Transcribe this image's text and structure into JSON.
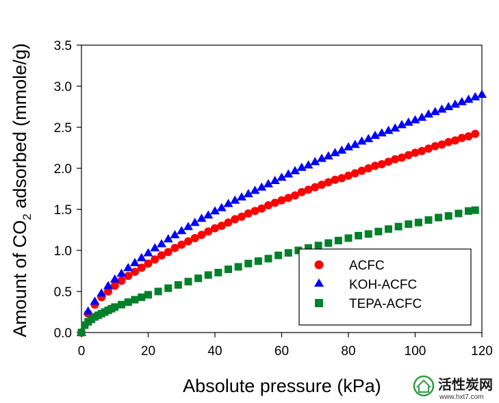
{
  "chart_data": {
    "type": "scatter",
    "xlabel": "Absolute pressure (kPa)",
    "ylabel": {
      "prefix": "Amount of CO",
      "subscript": "2",
      "suffix": " adsorbed (mmole/g)"
    },
    "xlim": [
      0,
      120
    ],
    "ylim": [
      0,
      3.5
    ],
    "xticks": [
      "0",
      "20",
      "40",
      "60",
      "80",
      "100",
      "120"
    ],
    "yticks": [
      "0.0",
      "0.5",
      "1.0",
      "1.5",
      "2.0",
      "2.5",
      "3.0",
      "3.5"
    ],
    "grid": false,
    "legend_position": "bottom-right",
    "series": [
      {
        "name": "ACFC",
        "color": "#ff0000",
        "marker": "circle",
        "x": [
          0,
          2,
          4,
          6,
          8,
          10,
          12,
          14,
          16,
          18,
          20,
          22,
          24,
          26,
          28,
          30,
          32,
          34,
          36,
          38,
          40,
          42,
          44,
          46,
          48,
          50,
          52,
          54,
          56,
          58,
          60,
          62,
          64,
          66,
          68,
          70,
          72,
          74,
          76,
          78,
          80,
          82,
          84,
          86,
          88,
          90,
          92,
          94,
          96,
          98,
          100,
          102,
          104,
          106,
          108,
          110,
          112,
          114,
          116,
          118
        ],
        "y": [
          0.0,
          0.23,
          0.34,
          0.43,
          0.5,
          0.57,
          0.63,
          0.69,
          0.74,
          0.79,
          0.84,
          0.89,
          0.94,
          0.98,
          1.03,
          1.07,
          1.11,
          1.15,
          1.19,
          1.23,
          1.27,
          1.3,
          1.34,
          1.38,
          1.41,
          1.45,
          1.48,
          1.51,
          1.55,
          1.58,
          1.61,
          1.64,
          1.67,
          1.71,
          1.74,
          1.77,
          1.8,
          1.83,
          1.86,
          1.88,
          1.91,
          1.94,
          1.97,
          2.0,
          2.03,
          2.05,
          2.08,
          2.11,
          2.13,
          2.16,
          2.19,
          2.21,
          2.24,
          2.27,
          2.29,
          2.32,
          2.34,
          2.37,
          2.39,
          2.42
        ]
      },
      {
        "name": "KOH-ACFC",
        "color": "#0000ff",
        "marker": "triangle",
        "x": [
          0,
          2,
          4,
          6,
          8,
          10,
          12,
          14,
          16,
          18,
          20,
          22,
          24,
          26,
          28,
          30,
          32,
          34,
          36,
          38,
          40,
          42,
          44,
          46,
          48,
          50,
          52,
          54,
          56,
          58,
          60,
          62,
          64,
          66,
          68,
          70,
          72,
          74,
          76,
          78,
          80,
          82,
          84,
          86,
          88,
          90,
          92,
          94,
          96,
          98,
          100,
          102,
          104,
          106,
          108,
          110,
          112,
          114,
          116,
          118,
          120
        ],
        "y": [
          0.0,
          0.26,
          0.38,
          0.48,
          0.57,
          0.65,
          0.72,
          0.79,
          0.85,
          0.91,
          0.97,
          1.03,
          1.08,
          1.14,
          1.19,
          1.24,
          1.29,
          1.34,
          1.39,
          1.43,
          1.48,
          1.52,
          1.57,
          1.61,
          1.65,
          1.69,
          1.73,
          1.77,
          1.81,
          1.85,
          1.89,
          1.93,
          1.97,
          2.01,
          2.04,
          2.08,
          2.12,
          2.15,
          2.19,
          2.22,
          2.26,
          2.29,
          2.33,
          2.36,
          2.4,
          2.43,
          2.46,
          2.49,
          2.53,
          2.56,
          2.59,
          2.62,
          2.66,
          2.69,
          2.72,
          2.75,
          2.78,
          2.81,
          2.84,
          2.87,
          2.9
        ]
      },
      {
        "name": "TEPA-ACFC",
        "color": "#00802b",
        "marker": "square",
        "x": [
          0,
          1,
          2,
          3,
          4,
          5,
          6,
          7,
          8,
          9,
          10,
          12,
          14,
          16,
          18,
          20,
          23,
          26,
          29,
          32,
          35,
          38,
          41,
          44,
          47,
          50,
          53,
          56,
          59,
          62,
          65,
          68,
          71,
          74,
          77,
          80,
          83,
          86,
          89,
          92,
          95,
          98,
          101,
          104,
          107,
          110,
          113,
          116,
          118
        ],
        "y": [
          0.0,
          0.09,
          0.13,
          0.16,
          0.19,
          0.21,
          0.23,
          0.25,
          0.27,
          0.29,
          0.31,
          0.34,
          0.37,
          0.4,
          0.43,
          0.46,
          0.5,
          0.54,
          0.58,
          0.62,
          0.66,
          0.7,
          0.73,
          0.77,
          0.8,
          0.84,
          0.87,
          0.9,
          0.94,
          0.97,
          1.0,
          1.03,
          1.06,
          1.09,
          1.12,
          1.15,
          1.18,
          1.2,
          1.23,
          1.26,
          1.29,
          1.32,
          1.34,
          1.37,
          1.4,
          1.42,
          1.45,
          1.48,
          1.49
        ]
      }
    ]
  },
  "watermark": {
    "text": "活性炭网",
    "url": "www.hxt7.com"
  }
}
